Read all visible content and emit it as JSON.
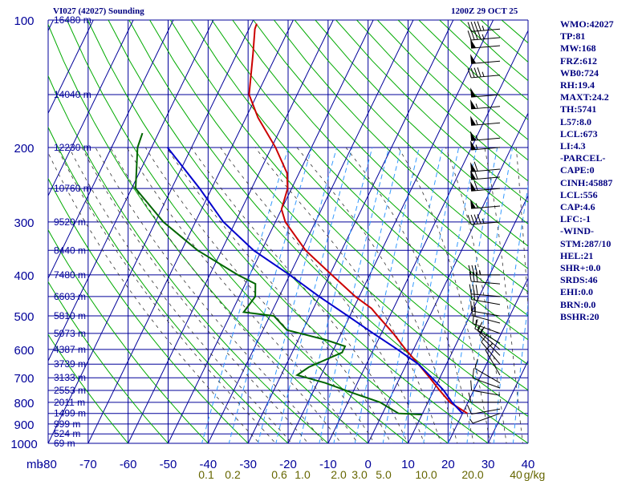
{
  "header": {
    "left": "VI027 (42027) Sounding",
    "right": "1200Z 29 OCT 25"
  },
  "stats": [
    "WMO:42027",
    "TP:81",
    "MW:168",
    "FRZ:612",
    "WB0:724",
    "RH:19.4",
    "MAXT:24.2",
    "TH:5741",
    "L57:8.0",
    "LCL:673",
    "LI:4.3",
    "-PARCEL-",
    "CAPE:0",
    "CINH:45887",
    "LCL:556",
    "CAP:4.6",
    "LFC:-1",
    "-WIND-",
    "STM:287/10",
    "HEL:21",
    "SHR+:0.0",
    "SRDS:46",
    "EHI:0.0",
    "BRN:0.0",
    "BSHR:20"
  ],
  "colors": {
    "grid": "#000099",
    "dry_adiabat": "#00aa00",
    "moist_adiabat": "#333333",
    "mixing_ratio": "#3399ff",
    "temperature": "#cc0000",
    "dewpoint": "#006600",
    "parcel": "#0000cc",
    "axis_text": "#000099",
    "mixing_text": "#666600"
  },
  "chart_data": {
    "type": "line",
    "skew_t": true,
    "pressure_unit": "mb",
    "pressure_levels": [
      100,
      200,
      300,
      400,
      500,
      600,
      700,
      800,
      900,
      1000
    ],
    "temperature_ticks": [
      -80,
      -70,
      -60,
      -50,
      -40,
      -30,
      -20,
      -10,
      0,
      10,
      20,
      30,
      40
    ],
    "x_tick_labels": [
      "-80",
      "-70",
      "-60",
      "-50",
      "-40",
      "-30",
      "-20",
      "-10",
      "0",
      "10",
      "20",
      "30",
      "40"
    ],
    "x_axis_label": "mb",
    "mixing_ratio_labels": [
      "0.1",
      "0.2",
      "0.6",
      "1.0",
      "2.0",
      "3.0",
      "5.0",
      "10.0",
      "20.0",
      "40",
      "g/kg"
    ],
    "height_labels": [
      {
        "p": 100,
        "label": "16480 m"
      },
      {
        "p": 150,
        "label": "14040 m"
      },
      {
        "p": 200,
        "label": "12230 m"
      },
      {
        "p": 250,
        "label": "10760 m"
      },
      {
        "p": 300,
        "label": "9520 m"
      },
      {
        "p": 350,
        "label": "8440 m"
      },
      {
        "p": 400,
        "label": "7480 m"
      },
      {
        "p": 450,
        "label": "6603 m"
      },
      {
        "p": 500,
        "label": "5810 m"
      },
      {
        "p": 550,
        "label": "5073 m"
      },
      {
        "p": 600,
        "label": "4387 m"
      },
      {
        "p": 650,
        "label": "3739 m"
      },
      {
        "p": 700,
        "label": "3133 m"
      },
      {
        "p": 750,
        "label": "2553 m"
      },
      {
        "p": 800,
        "label": "2011 m"
      },
      {
        "p": 850,
        "label": "1499 m"
      },
      {
        "p": 900,
        "label": "999 m"
      },
      {
        "p": 950,
        "label": "524 m"
      },
      {
        "p": 1000,
        "label": "69 m"
      }
    ],
    "series": [
      {
        "key": "temperature",
        "points": [
          [
            102,
            -78.7
          ],
          [
            105,
            -78.5
          ],
          [
            120,
            -76
          ],
          [
            150,
            -72
          ],
          [
            170,
            -67
          ],
          [
            200,
            -59
          ],
          [
            230,
            -53
          ],
          [
            250,
            -51
          ],
          [
            280,
            -50
          ],
          [
            300,
            -47.5
          ],
          [
            350,
            -39
          ],
          [
            400,
            -29.5
          ],
          [
            450,
            -21
          ],
          [
            480,
            -15.5
          ],
          [
            500,
            -13
          ],
          [
            550,
            -7
          ],
          [
            600,
            -2
          ],
          [
            650,
            3
          ],
          [
            700,
            7.5
          ],
          [
            750,
            11.5
          ],
          [
            800,
            15.5
          ],
          [
            850,
            21.2
          ]
        ]
      },
      {
        "key": "dewpoint",
        "points": [
          [
            185,
            -94
          ],
          [
            200,
            -93.5
          ],
          [
            250,
            -89
          ],
          [
            300,
            -78
          ],
          [
            350,
            -66
          ],
          [
            400,
            -53
          ],
          [
            420,
            -47.5
          ],
          [
            450,
            -46
          ],
          [
            490,
            -47
          ],
          [
            500,
            -39
          ],
          [
            540,
            -34
          ],
          [
            570,
            -23
          ],
          [
            590,
            -17.5
          ],
          [
            610,
            -17.5
          ],
          [
            660,
            -24
          ],
          [
            690,
            -26
          ],
          [
            720,
            -18
          ],
          [
            760,
            -10
          ],
          [
            800,
            -2
          ],
          [
            850,
            4
          ],
          [
            855,
            10
          ]
        ]
      },
      {
        "key": "parcel",
        "points": [
          [
            200,
            -86
          ],
          [
            250,
            -73
          ],
          [
            300,
            -63
          ],
          [
            350,
            -52
          ],
          [
            400,
            -40
          ],
          [
            450,
            -30
          ],
          [
            500,
            -20.5
          ],
          [
            550,
            -12
          ],
          [
            600,
            -4
          ],
          [
            650,
            3
          ],
          [
            700,
            8
          ],
          [
            750,
            12.5
          ],
          [
            800,
            16
          ],
          [
            850,
            20
          ]
        ]
      }
    ],
    "wind_barbs": [
      {
        "p": 105,
        "dir": 265,
        "spd": 45
      },
      {
        "p": 110,
        "dir": 265,
        "spd": 45
      },
      {
        "p": 115,
        "dir": 265,
        "spd": 50
      },
      {
        "p": 125,
        "dir": 265,
        "spd": 50
      },
      {
        "p": 135,
        "dir": 265,
        "spd": 45
      },
      {
        "p": 150,
        "dir": 265,
        "spd": 50
      },
      {
        "p": 160,
        "dir": 265,
        "spd": 55
      },
      {
        "p": 175,
        "dir": 265,
        "spd": 55
      },
      {
        "p": 190,
        "dir": 265,
        "spd": 55
      },
      {
        "p": 200,
        "dir": 265,
        "spd": 55
      },
      {
        "p": 225,
        "dir": 265,
        "spd": 60
      },
      {
        "p": 235,
        "dir": 265,
        "spd": 60
      },
      {
        "p": 250,
        "dir": 265,
        "spd": 60
      },
      {
        "p": 275,
        "dir": 265,
        "spd": 55
      },
      {
        "p": 300,
        "dir": 265,
        "spd": 45
      },
      {
        "p": 400,
        "dir": 270,
        "spd": 35
      },
      {
        "p": 420,
        "dir": 275,
        "spd": 30
      },
      {
        "p": 450,
        "dir": 275,
        "spd": 30
      },
      {
        "p": 470,
        "dir": 280,
        "spd": 25
      },
      {
        "p": 500,
        "dir": 280,
        "spd": 20
      },
      {
        "p": 520,
        "dir": 285,
        "spd": 20
      },
      {
        "p": 550,
        "dir": 290,
        "spd": 15
      },
      {
        "p": 580,
        "dir": 300,
        "spd": 15
      },
      {
        "p": 600,
        "dir": 310,
        "spd": 15
      },
      {
        "p": 620,
        "dir": 315,
        "spd": 10
      },
      {
        "p": 650,
        "dir": 320,
        "spd": 10
      },
      {
        "p": 690,
        "dir": 330,
        "spd": 10
      },
      {
        "p": 720,
        "dir": 300,
        "spd": 10
      },
      {
        "p": 740,
        "dir": 290,
        "spd": 10
      },
      {
        "p": 770,
        "dir": 280,
        "spd": 10
      },
      {
        "p": 800,
        "dir": 270,
        "spd": 10
      },
      {
        "p": 830,
        "dir": 260,
        "spd": 10
      },
      {
        "p": 850,
        "dir": 250,
        "spd": 5
      }
    ]
  }
}
